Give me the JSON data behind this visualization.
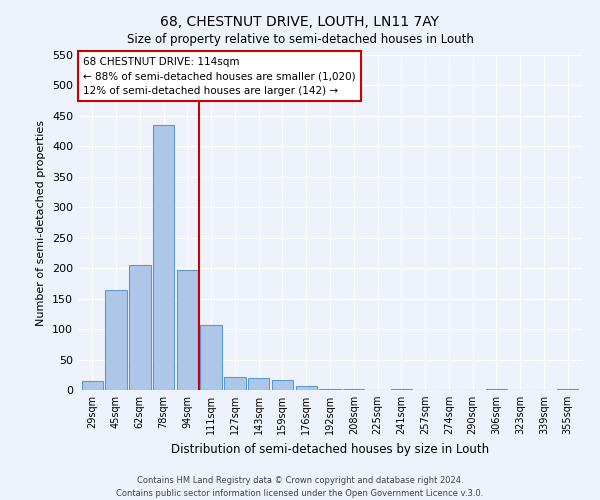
{
  "title": "68, CHESTNUT DRIVE, LOUTH, LN11 7AY",
  "subtitle": "Size of property relative to semi-detached houses in Louth",
  "xlabel": "Distribution of semi-detached houses by size in Louth",
  "ylabel": "Number of semi-detached properties",
  "bar_labels": [
    "29sqm",
    "45sqm",
    "62sqm",
    "78sqm",
    "94sqm",
    "111sqm",
    "127sqm",
    "143sqm",
    "159sqm",
    "176sqm",
    "192sqm",
    "208sqm",
    "225sqm",
    "241sqm",
    "257sqm",
    "274sqm",
    "290sqm",
    "306sqm",
    "323sqm",
    "339sqm",
    "355sqm"
  ],
  "bar_values": [
    15,
    165,
    205,
    435,
    197,
    107,
    22,
    20,
    16,
    7,
    1,
    1,
    0,
    1,
    0,
    0,
    0,
    1,
    0,
    0,
    1
  ],
  "bar_color": "#aec6e8",
  "bar_edge_color": "#5b9bd5",
  "marker_line_color": "#cc0000",
  "ylim": [
    0,
    550
  ],
  "yticks": [
    0,
    50,
    100,
    150,
    200,
    250,
    300,
    350,
    400,
    450,
    500,
    550
  ],
  "annotation_title": "68 CHESTNUT DRIVE: 114sqm",
  "annotation_line1": "← 88% of semi-detached houses are smaller (1,020)",
  "annotation_line2": "12% of semi-detached houses are larger (142) →",
  "footer1": "Contains HM Land Registry data © Crown copyright and database right 2024.",
  "footer2": "Contains public sector information licensed under the Open Government Licence v.3.0.",
  "bg_color": "#eef2fb",
  "grid_color": "#ffffff",
  "box_color": "#cc0000"
}
